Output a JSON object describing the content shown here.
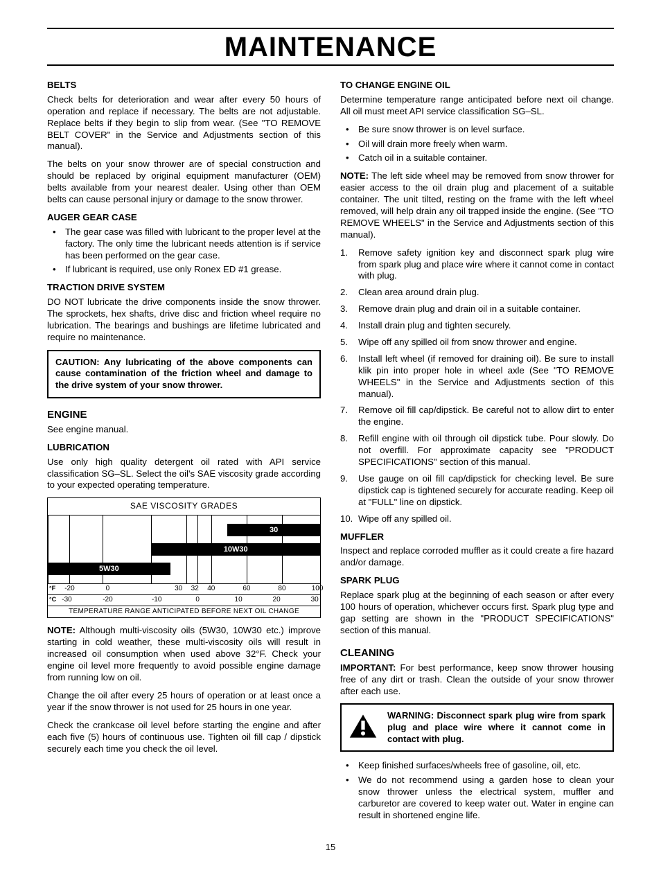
{
  "page": {
    "title": "MAINTENANCE",
    "number": "15"
  },
  "left": {
    "belts": {
      "head": "BELTS",
      "p1": "Check belts for deterioration and wear after every 50 hours of operation and replace if necessary. The belts are not adjustable. Replace belts if they begin to slip from wear. (See \"TO REMOVE BELT COVER\" in the Service and Adjustments section of this manual).",
      "p2": "The belts on your snow thrower are of special construction and should be replaced by original equipment manufacturer (OEM) belts available from your nearest dealer. Using other than OEM belts can cause personal injury or damage to the snow thrower."
    },
    "auger": {
      "head": "AUGER GEAR CASE",
      "b1": "The gear case was filled with lubricant to the proper level at the factory. The only time the lubricant needs attention is if service has been performed on the gear case.",
      "b2": "If lubricant is required, use only Ronex ED #1 grease."
    },
    "traction": {
      "head": "TRACTION DRIVE SYSTEM",
      "p1": "DO NOT lubricate the drive components inside the snow thrower. The sprockets, hex shafts, drive disc and friction wheel require no lubrication. The bearings and bushings are lifetime lubricated and require no maintenance."
    },
    "caution": "CAUTION: Any lubricating of the above components can cause contamination of the friction wheel and damage to the drive system of your snow thrower.",
    "engine": {
      "head": "ENGINE",
      "p1": "See engine manual."
    },
    "lub": {
      "head": "LUBRICATION",
      "p1": "Use only high quality detergent oil rated with API service classification SG–SL. Select the oil's SAE viscosity grade according to your expected operating temperature."
    },
    "chart": {
      "title": "SAE VISCOSITY GRADES",
      "bands": [
        {
          "label": "30",
          "start_pct": 66,
          "end_pct": 100,
          "row": 0
        },
        {
          "label": "10W30",
          "start_pct": 38,
          "end_pct": 100,
          "row": 1
        },
        {
          "label": "5W30",
          "start_pct": 0,
          "end_pct": 45,
          "row": 2
        }
      ],
      "vlines_pct": [
        0,
        8,
        20,
        38,
        51,
        55,
        60,
        73,
        86,
        100
      ],
      "f_scale": {
        "unit": "°F",
        "ticks": [
          {
            "pos": 8,
            "label": "-20"
          },
          {
            "pos": 22,
            "label": "0"
          },
          {
            "pos": 48,
            "label": "30"
          },
          {
            "pos": 54,
            "label": "32"
          },
          {
            "pos": 60,
            "label": "40"
          },
          {
            "pos": 73,
            "label": "60"
          },
          {
            "pos": 86,
            "label": "80"
          },
          {
            "pos": 99,
            "label": "100"
          }
        ]
      },
      "c_scale": {
        "unit": "°C",
        "ticks": [
          {
            "pos": 7,
            "label": "-30"
          },
          {
            "pos": 22,
            "label": "-20"
          },
          {
            "pos": 40,
            "label": "-10"
          },
          {
            "pos": 55,
            "label": "0"
          },
          {
            "pos": 70,
            "label": "10"
          },
          {
            "pos": 84,
            "label": "20"
          },
          {
            "pos": 98,
            "label": "30"
          }
        ]
      },
      "caption": "TEMPERATURE RANGE ANTICIPATED BEFORE NEXT OIL CHANGE"
    },
    "note_label": "NOTE:",
    "note1": " Although multi-viscosity oils (5W30, 10W30 etc.) improve starting in cold weather, these multi-viscosity oils will result in increased oil consumption when used above 32°F. Check your engine oil level more frequently to avoid possible engine damage from running low on oil.",
    "p_change": "Change the oil after every 25 hours of operation or at least once a year if the snow thrower is not used for 25 hours in one year.",
    "p_crank": "Check the crankcase oil level before starting the engine and after each five (5) hours of continuous use. Tighten oil fill cap / dipstick securely each time you check the oil level."
  },
  "right": {
    "change": {
      "head": "TO CHANGE ENGINE OIL",
      "p1": "Determine temperature range anticipated before next oil change. All oil must meet API service classification SG–SL.",
      "b1": "Be sure snow thrower is on level surface.",
      "b2": "Oil will drain more freely when warm.",
      "b3": "Catch oil in a suitable container."
    },
    "note_label": "NOTE:",
    "note2": " The left side wheel may be removed from snow thrower for easier access to the oil drain plug and placement of a suitable container. The unit tilted, resting on the frame with the left wheel removed, will help drain any oil trapped inside the engine. (See \"TO REMOVE WHEELS\" in the Service and Adjustments section of this manual).",
    "steps": {
      "s1": "Remove safety ignition key and disconnect spark plug wire from spark plug and place wire where it cannot come in contact with plug.",
      "s2": "Clean area around drain plug.",
      "s3": "Remove drain plug and drain oil in a suitable container.",
      "s4": "Install drain plug and tighten securely.",
      "s5": "Wipe off any spilled oil from snow thrower and engine.",
      "s6": "Install left wheel (if removed for draining oil). Be sure to install klik pin into proper hole in wheel axle (See \"TO REMOVE WHEELS\" in the Service and Adjustments section of this manual).",
      "s7": "Remove oil fill cap/dipstick. Be careful not to allow dirt to enter the engine.",
      "s8": "Refill engine with oil through oil dipstick tube. Pour slowly. Do not overfill. For approximate capacity see \"PRODUCT SPECIFICATIONS\" section of this manual.",
      "s9": "Use gauge on oil fill cap/dipstick for checking level. Be sure dipstick cap is tightened securely for accurate reading. Keep oil at \"FULL\" line on dipstick.",
      "s10": "Wipe off any spilled oil."
    },
    "muffler": {
      "head": "MUFFLER",
      "p1": "Inspect and replace corroded muffler as it could create a fire hazard and/or damage."
    },
    "spark": {
      "head": "SPARK PLUG",
      "p1": "Replace spark plug at the beginning of each season or after every 100 hours of operation, whichever occurs first. Spark plug type and gap setting are shown in the \"PRODUCT SPECIFICATIONS\" section of this manual."
    },
    "clean": {
      "head": "CLEANING",
      "imp_label": "IMPORTANT:",
      "imp": " For best performance, keep snow thrower housing free of any dirt or trash. Clean the outside of your snow thrower after each use."
    },
    "warn": "WARNING: Disconnect spark plug wire from spark plug and place wire where it cannot come in contact with plug.",
    "clean_b1": "Keep finished surfaces/wheels free of gasoline, oil, etc.",
    "clean_b2": "We do not recommend using a garden hose to clean your snow thrower unless the electrical system, muffler and carburetor are covered to keep water out. Water in engine can result in shortened engine life."
  }
}
